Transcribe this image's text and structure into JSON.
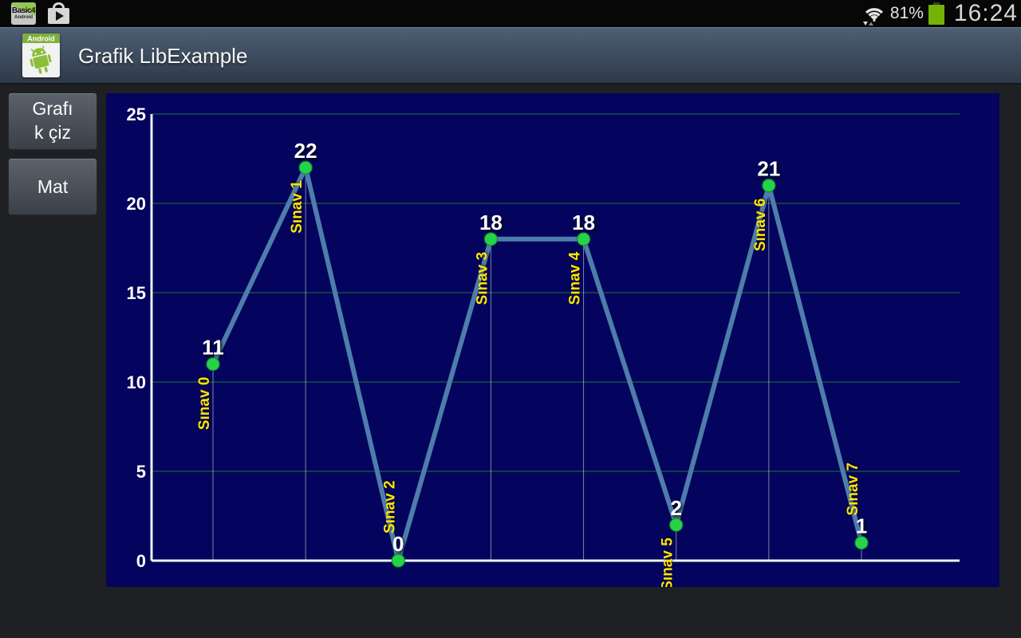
{
  "status_bar": {
    "b4a_icon_line1": "Basic4",
    "b4a_icon_line2": "Android",
    "battery_pct": "81%",
    "time": "16:24"
  },
  "action_bar": {
    "title": "Grafik LibExample",
    "app_icon_banner": "Android"
  },
  "sidebar": {
    "buttons": [
      {
        "label": "Grafık çiz"
      },
      {
        "label": "Mat"
      }
    ]
  },
  "chart_data": {
    "type": "line",
    "title": "",
    "xlabel": "",
    "ylabel": "",
    "categories": [
      "Sınav 0",
      "Sınav 1",
      "Sınav 2",
      "Sınav 3",
      "Sınav 4",
      "Sınav 5",
      "Sınav 6",
      "Sınav 7"
    ],
    "values": [
      11,
      22,
      0,
      18,
      18,
      2,
      21,
      1
    ],
    "ylim": [
      0,
      25
    ],
    "yticks": [
      0,
      5,
      10,
      15,
      20,
      25
    ],
    "grid": true,
    "legend": false,
    "category_label_side": [
      "below",
      "below",
      "above",
      "below",
      "below",
      "below",
      "below",
      "above"
    ],
    "colors": {
      "panel_bg": "#04045e",
      "line": "#4e7dab",
      "point": "#26d348",
      "point_edge": "#128c2c",
      "value_label": "#ffffff",
      "category_label": "#ffe400",
      "tick_label": "#ffffff",
      "gridline": "#155040",
      "axis": "#e9f2f2",
      "drop_line": "#cfd8d8"
    }
  }
}
